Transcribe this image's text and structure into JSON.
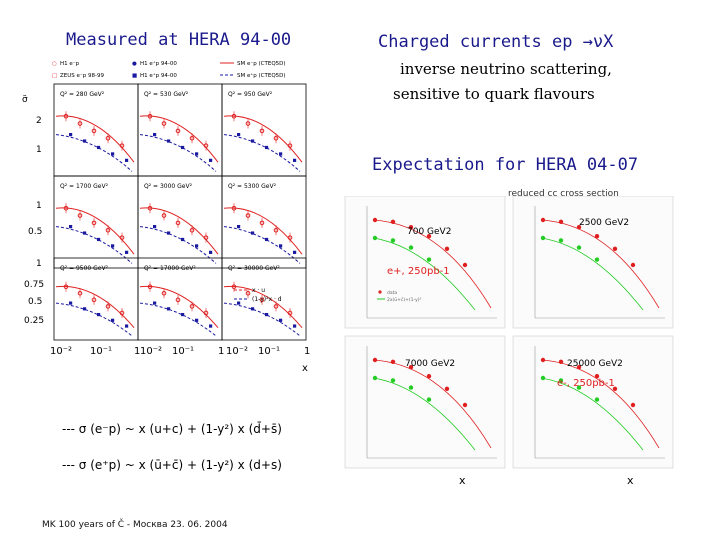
{
  "left_title": "Measured at HERA 94-00",
  "right_title": "Charged currents ep →νX",
  "right_subtitle_1": "inverse neutrino scattering,",
  "right_subtitle_2": "sensitive to quark flavours",
  "expectation_title": "Expectation for HERA 04-07",
  "legend": {
    "h1_em": "H1 e⁻p",
    "h1_ep": "H1 e⁺p 94-00",
    "sm_em": "SM e⁻p (CTEQ5D)",
    "zeus_em": "ZEUS e⁻p 98-99",
    "zeus_ep": "H1 e⁺p 94-00",
    "sm_ep": "SM e⁺p (CTEQ5D)"
  },
  "left_panels": [
    "Q² = 280 GeV²",
    "Q² = 530 GeV²",
    "Q² = 950 GeV²",
    "Q² = 1700 GeV²",
    "Q² = 3000 GeV²",
    "Q² = 5300 GeV²",
    "Q² = 9500 GeV²",
    "Q² = 17000 GeV²",
    "Q² = 30000 GeV²"
  ],
  "left_yaxis_label": "σ̃",
  "left_yticks_row1": [
    "2",
    "1"
  ],
  "left_yticks_row2": [
    "1",
    "0.5"
  ],
  "left_yticks_row3": [
    "1",
    "0.75",
    "0.5",
    "0.25"
  ],
  "left_xticks": [
    "10⁻²",
    "10⁻¹",
    "1",
    "10⁻²",
    "10⁻¹",
    "1",
    "10⁻²",
    "10⁻¹",
    "1"
  ],
  "left_xaxis_label": "x",
  "left_inner_legend_1": "x · u",
  "left_inner_legend_2": "(1-y)²x · d",
  "right_header": "reduced cc cross section",
  "right_panel_labels": [
    "700 GeV2",
    "2500 GeV2",
    "7000 GeV2",
    "25000 GeV2"
  ],
  "right_lumi_1": "e+, 250pb-1",
  "right_lumi_2": "e-, 250pb-1",
  "right_inner_legend_1": "data",
  "right_inner_legend_2": "2x(ū+c̄)+(1-y)²",
  "right_x_label_1": "x",
  "right_x_label_2": "x",
  "formula_1": "---  σ (e⁻p) ~ x (u+c) + (1-y²) x (d̄+s̄)",
  "formula_2": "---  σ (e⁺p) ~ x (ū+c̄) + (1-y²) x (d+s)",
  "footer": "MK 100 years of Č - Москва 23. 06. 2004",
  "colors": {
    "title": "#1a1a8c",
    "red": "#e02020",
    "blue": "#1a1aa0",
    "green": "#22cc22"
  }
}
